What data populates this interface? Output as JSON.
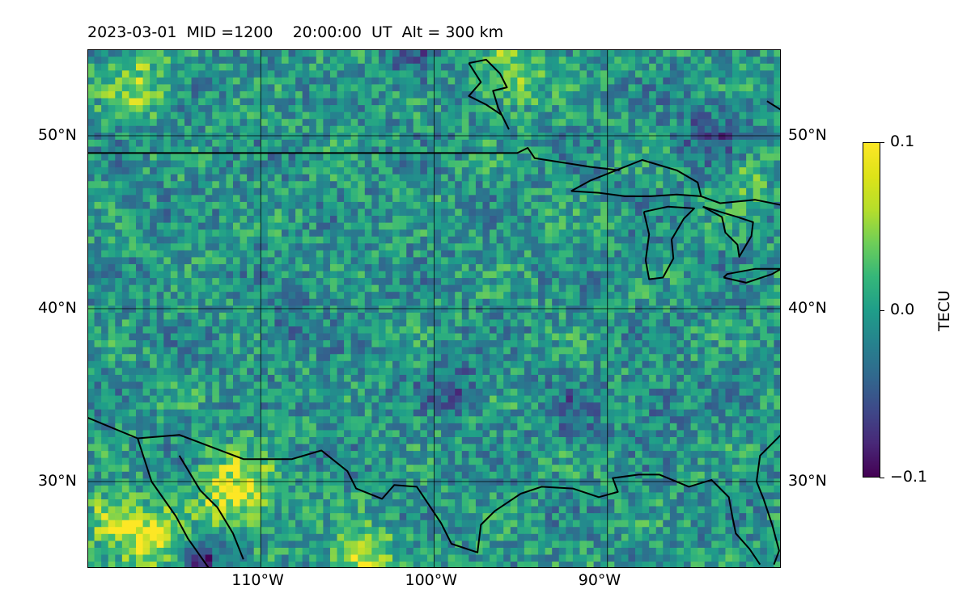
{
  "chart_data": {
    "type": "heatmap",
    "title": "2023-03-01  MID =1200    20:00:00  UT  Alt = 300 km",
    "date": "2023-03-01",
    "mid": "1200",
    "time_ut": "20:00:00",
    "altitude": "300 km",
    "xlim": [
      -120,
      -80
    ],
    "ylim": [
      25,
      55
    ],
    "x_ticks": [
      {
        "value": -110,
        "label": "110°W"
      },
      {
        "value": -100,
        "label": "100°W"
      },
      {
        "value": -90,
        "label": "90°W"
      }
    ],
    "y_ticks": [
      {
        "value": 30,
        "label": "30°N"
      },
      {
        "value": 40,
        "label": "40°N"
      },
      {
        "value": 50,
        "label": "50°N"
      }
    ],
    "grid": true,
    "colormap": "viridis",
    "colorbar": {
      "label": "TECU",
      "vmin": -0.1,
      "vmax": 0.1,
      "ticks": [
        {
          "value": 0.1,
          "label": "0.1"
        },
        {
          "value": 0.0,
          "label": "0.0"
        },
        {
          "value": -0.1,
          "label": "−0.1"
        }
      ]
    }
  }
}
